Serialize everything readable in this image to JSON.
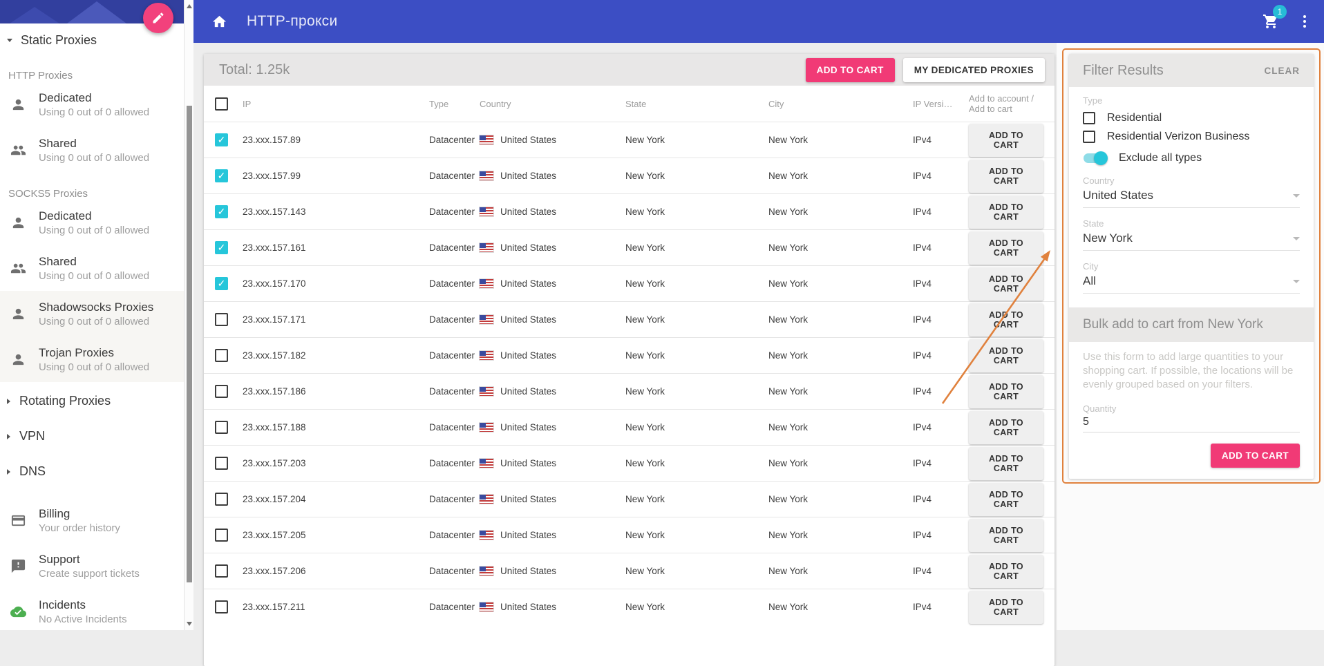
{
  "appbar": {
    "title": "HTTP-прокси",
    "cart_badge": "1"
  },
  "sidebar": {
    "root_label": "Static Proxies",
    "groups": [
      {
        "label": "HTTP Proxies",
        "items": [
          {
            "icon": "person-icon",
            "title": "Dedicated",
            "subtitle": "Using 0 out of 0 allowed"
          },
          {
            "icon": "people-icon",
            "title": "Shared",
            "subtitle": "Using 0 out of 0 allowed"
          }
        ]
      },
      {
        "label": "SOCKS5 Proxies",
        "items": [
          {
            "icon": "person-icon",
            "title": "Dedicated",
            "subtitle": "Using 0 out of 0 allowed"
          },
          {
            "icon": "people-icon",
            "title": "Shared",
            "subtitle": "Using 0 out of 0 allowed"
          },
          {
            "icon": "person-icon",
            "title": "Shadowsocks Proxies",
            "subtitle": "Using 0 out of 0 allowed",
            "highlighted": true
          },
          {
            "icon": "person-icon",
            "title": "Trojan Proxies",
            "subtitle": "Using 0 out of 0 allowed",
            "highlighted": true
          }
        ]
      }
    ],
    "collapsed": [
      "Rotating Proxies",
      "VPN",
      "DNS"
    ],
    "footer": [
      {
        "icon": "credit-card-icon",
        "title": "Billing",
        "subtitle": "Your order history"
      },
      {
        "icon": "feedback-icon",
        "title": "Support",
        "subtitle": "Create support tickets"
      },
      {
        "icon": "cloud-check-icon",
        "title": "Incidents",
        "subtitle": "No Active Incidents",
        "icon_color": "#4caf50"
      }
    ]
  },
  "toolbar": {
    "total": "Total: 1.25k",
    "add_to_cart": "ADD TO CART",
    "my_dedicated": "MY DEDICATED PROXIES"
  },
  "table": {
    "columns": [
      "IP",
      "Type",
      "Country",
      "State",
      "City",
      "IP Versi…",
      "Add to account / Add to cart"
    ],
    "row_action": "ADD TO CART",
    "rows": [
      {
        "ip": "23.xxx.157.89",
        "checked": true,
        "type": "Datacenter",
        "country": "United States",
        "state": "New York",
        "city": "New York",
        "version": "IPv4"
      },
      {
        "ip": "23.xxx.157.99",
        "checked": true,
        "type": "Datacenter",
        "country": "United States",
        "state": "New York",
        "city": "New York",
        "version": "IPv4"
      },
      {
        "ip": "23.xxx.157.143",
        "checked": true,
        "type": "Datacenter",
        "country": "United States",
        "state": "New York",
        "city": "New York",
        "version": "IPv4"
      },
      {
        "ip": "23.xxx.157.161",
        "checked": true,
        "type": "Datacenter",
        "country": "United States",
        "state": "New York",
        "city": "New York",
        "version": "IPv4"
      },
      {
        "ip": "23.xxx.157.170",
        "checked": true,
        "type": "Datacenter",
        "country": "United States",
        "state": "New York",
        "city": "New York",
        "version": "IPv4"
      },
      {
        "ip": "23.xxx.157.171",
        "checked": false,
        "type": "Datacenter",
        "country": "United States",
        "state": "New York",
        "city": "New York",
        "version": "IPv4"
      },
      {
        "ip": "23.xxx.157.182",
        "checked": false,
        "type": "Datacenter",
        "country": "United States",
        "state": "New York",
        "city": "New York",
        "version": "IPv4"
      },
      {
        "ip": "23.xxx.157.186",
        "checked": false,
        "type": "Datacenter",
        "country": "United States",
        "state": "New York",
        "city": "New York",
        "version": "IPv4"
      },
      {
        "ip": "23.xxx.157.188",
        "checked": false,
        "type": "Datacenter",
        "country": "United States",
        "state": "New York",
        "city": "New York",
        "version": "IPv4"
      },
      {
        "ip": "23.xxx.157.203",
        "checked": false,
        "type": "Datacenter",
        "country": "United States",
        "state": "New York",
        "city": "New York",
        "version": "IPv4"
      },
      {
        "ip": "23.xxx.157.204",
        "checked": false,
        "type": "Datacenter",
        "country": "United States",
        "state": "New York",
        "city": "New York",
        "version": "IPv4"
      },
      {
        "ip": "23.xxx.157.205",
        "checked": false,
        "type": "Datacenter",
        "country": "United States",
        "state": "New York",
        "city": "New York",
        "version": "IPv4"
      },
      {
        "ip": "23.xxx.157.206",
        "checked": false,
        "type": "Datacenter",
        "country": "United States",
        "state": "New York",
        "city": "New York",
        "version": "IPv4"
      },
      {
        "ip": "23.xxx.157.211",
        "checked": false,
        "type": "Datacenter",
        "country": "United States",
        "state": "New York",
        "city": "New York",
        "version": "IPv4"
      }
    ]
  },
  "filter": {
    "title": "Filter Results",
    "clear": "CLEAR",
    "type_label": "Type",
    "checkboxes": [
      {
        "label": "Residential",
        "checked": false
      },
      {
        "label": "Residential Verizon Business",
        "checked": false
      }
    ],
    "toggle": {
      "label": "Exclude all types",
      "on": true
    },
    "selects": [
      {
        "label": "Country",
        "value": "United States"
      },
      {
        "label": "State",
        "value": "New York"
      },
      {
        "label": "City",
        "value": "All"
      }
    ],
    "bulk": {
      "title": "Bulk add to cart from New York",
      "description": "Use this form to add large quantities to your shopping cart. If possible, the locations will be evenly grouped based on your filters.",
      "quantity_label": "Quantity",
      "quantity_value": "5",
      "submit": "ADD TO CART"
    }
  },
  "colors": {
    "appbar_indigo": "#3c4ec4",
    "accent_pink": "#f2417c",
    "accent_cyan": "#26c6da",
    "annotation_orange": "#e0813d",
    "incident_green": "#4caf50"
  }
}
